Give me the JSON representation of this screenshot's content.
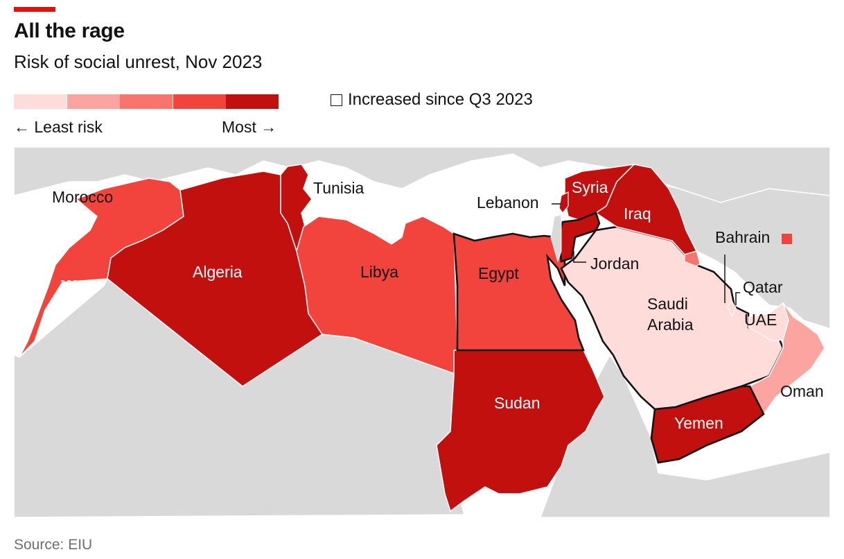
{
  "header": {
    "title": "All the rage",
    "subtitle": "Risk of social unrest, Nov 2023"
  },
  "legend": {
    "scale_colors": [
      "#fedcd9",
      "#fca5a0",
      "#f8746c",
      "#f2443d",
      "#c1100e"
    ],
    "least_label": "← Least risk",
    "most_label": "Most →",
    "increased_label": "Increased since Q3 2023"
  },
  "countries": {
    "morocco": {
      "name": "Morocco",
      "risk_level": 4,
      "increased": false
    },
    "algeria": {
      "name": "Algeria",
      "risk_level": 5,
      "increased": false
    },
    "tunisia": {
      "name": "Tunisia",
      "risk_level": 5,
      "increased": false
    },
    "libya": {
      "name": "Libya",
      "risk_level": 4,
      "increased": false
    },
    "egypt": {
      "name": "Egypt",
      "risk_level": 4,
      "increased": true
    },
    "sudan": {
      "name": "Sudan",
      "risk_level": 5,
      "increased": false
    },
    "lebanon": {
      "name": "Lebanon",
      "risk_level": 5,
      "increased": false
    },
    "syria": {
      "name": "Syria",
      "risk_level": 5,
      "increased": false
    },
    "iraq": {
      "name": "Iraq",
      "risk_level": 5,
      "increased": false
    },
    "jordan": {
      "name": "Jordan",
      "risk_level": 5,
      "increased": true
    },
    "saudi": {
      "name": "Saudi\nArabia",
      "line1": "Saudi",
      "line2": "Arabia",
      "risk_level": 1,
      "increased": true
    },
    "kuwait": {
      "risk_level": 3,
      "increased": false
    },
    "bahrain": {
      "name": "Bahrain",
      "risk_level": 4,
      "increased": false
    },
    "qatar": {
      "name": "Qatar",
      "risk_level": 1,
      "increased": false
    },
    "uae": {
      "name": "UAE",
      "risk_level": 1,
      "increased": false
    },
    "oman": {
      "name": "Oman",
      "risk_level": 2,
      "increased": false
    },
    "yemen": {
      "name": "Yemen",
      "risk_level": 5,
      "increased": true
    }
  },
  "colors": {
    "background_land": "#d9d9d9",
    "sea": "#ffffff",
    "highlight_border": "#121212"
  },
  "source": "Source: EIU"
}
